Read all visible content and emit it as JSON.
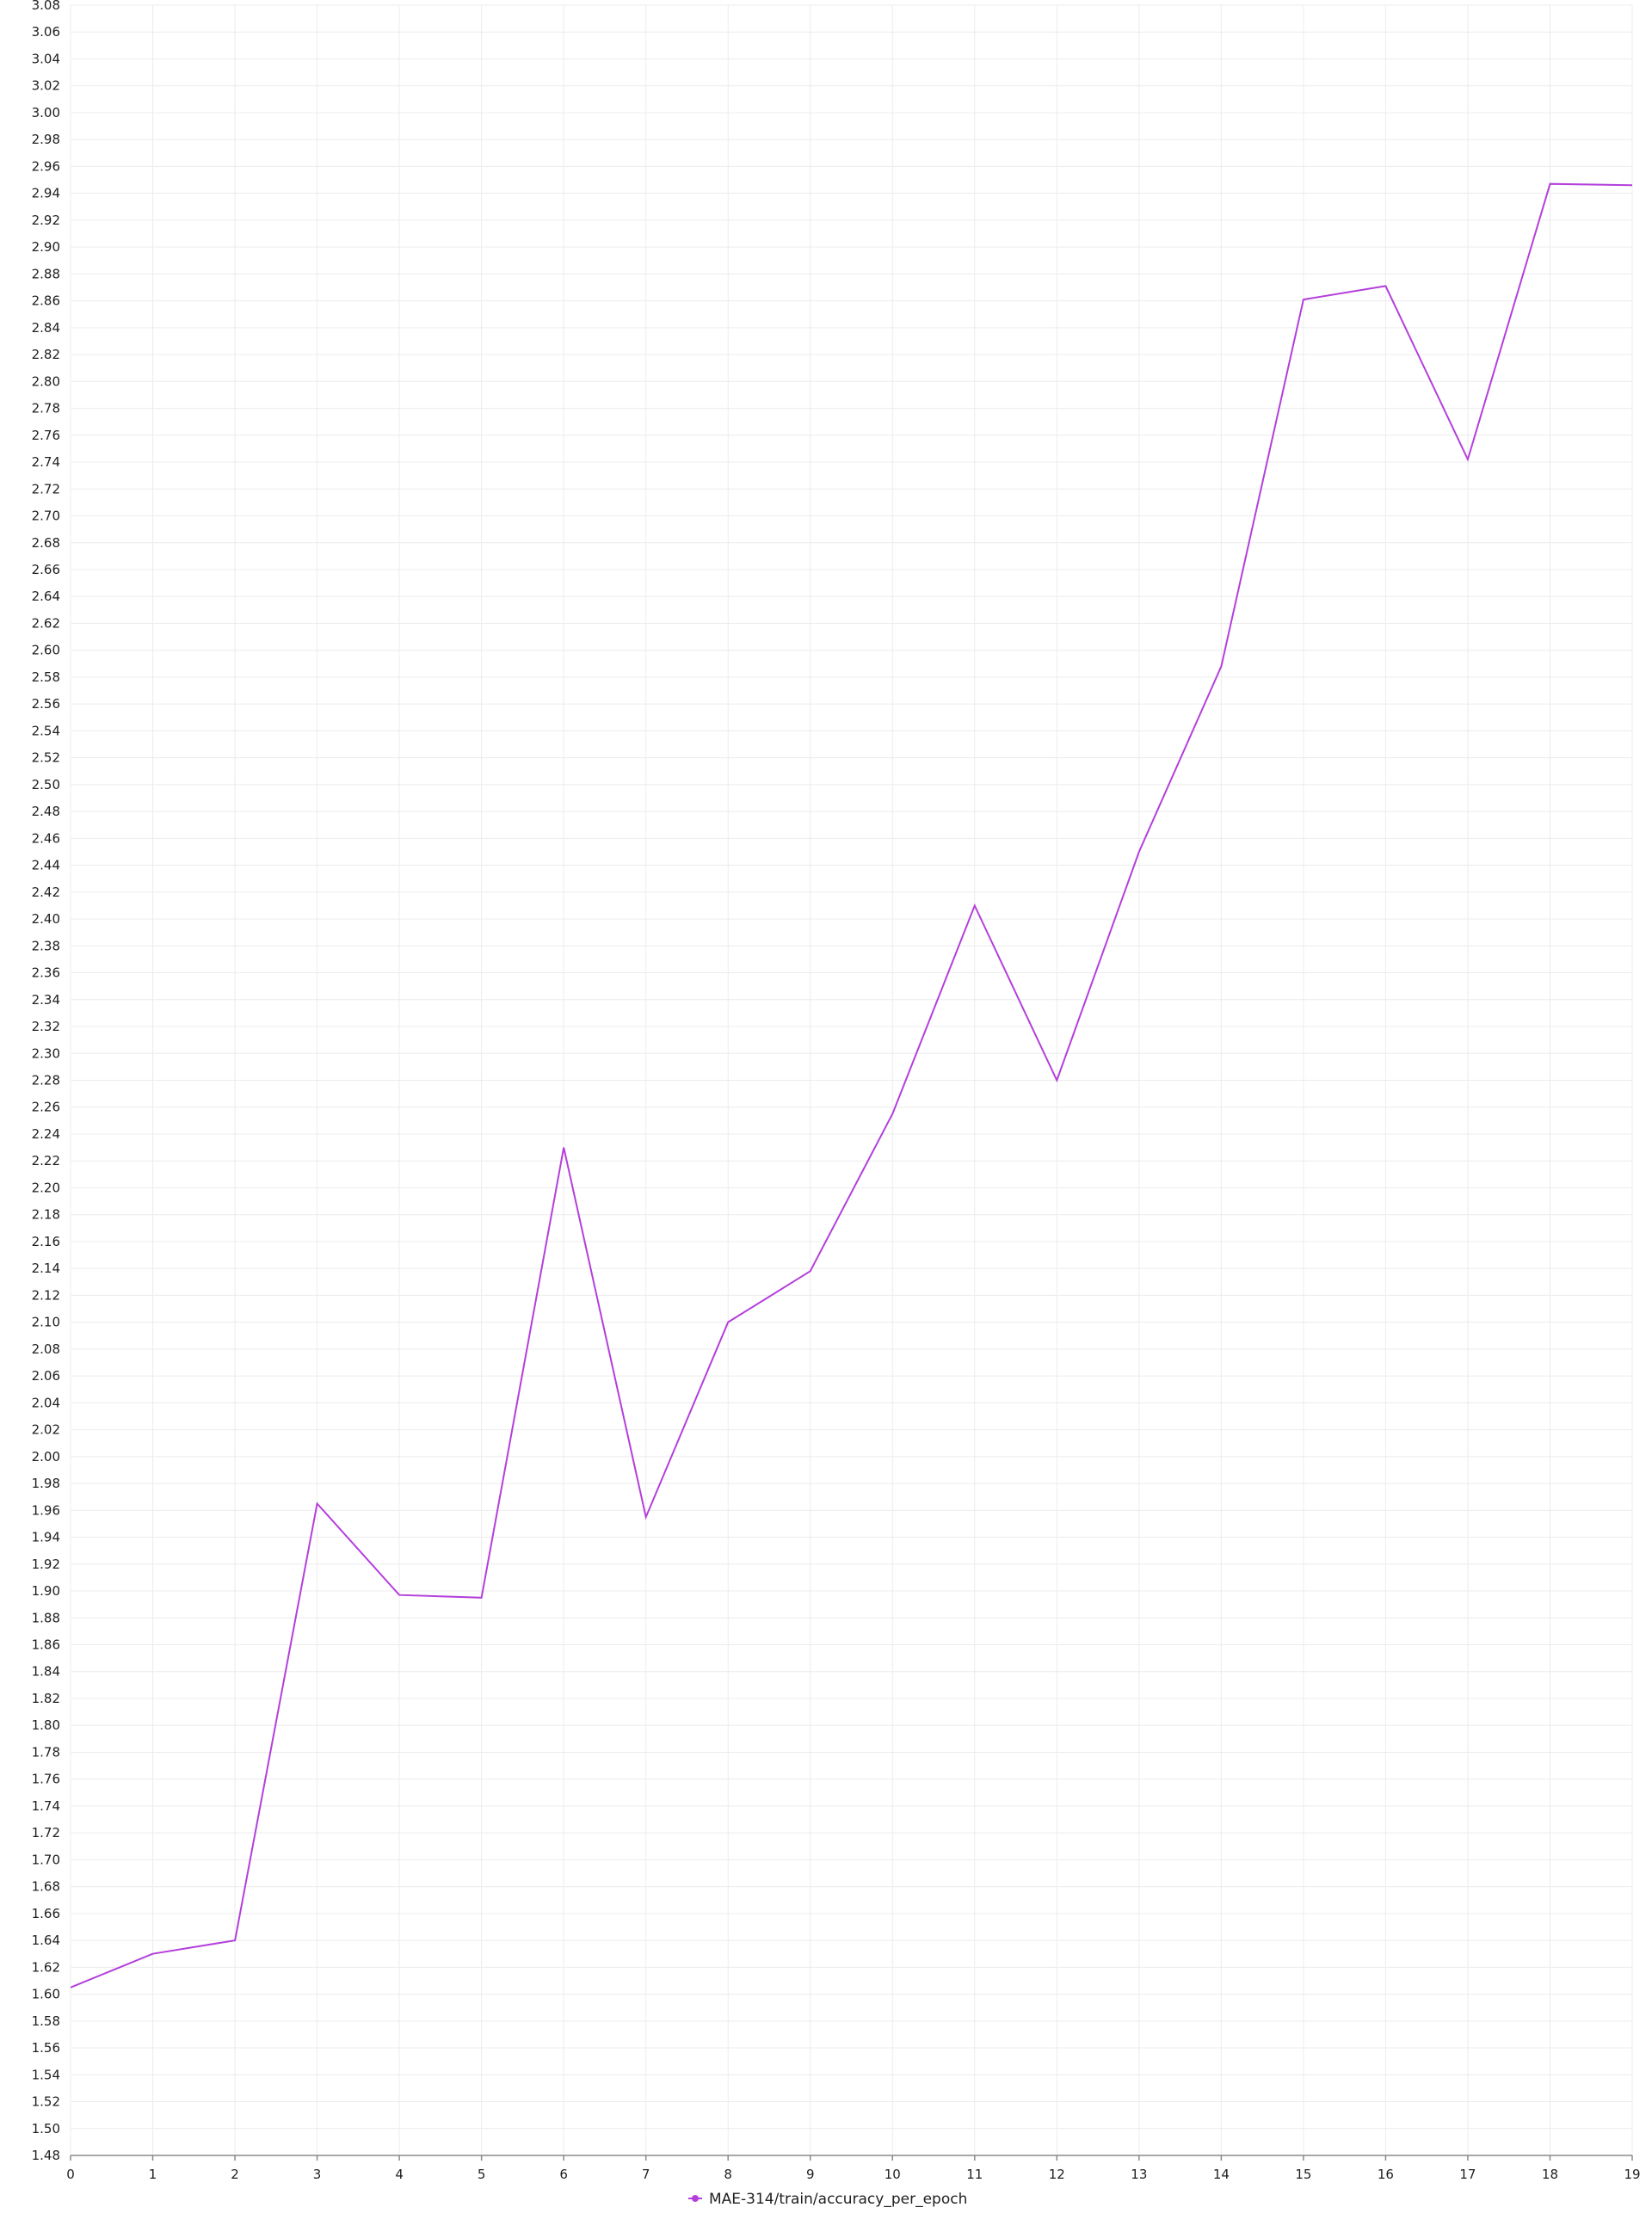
{
  "chart_data": {
    "type": "line",
    "title": "",
    "xlabel": "",
    "ylabel": "",
    "xlim": [
      0,
      19
    ],
    "ylim": [
      1.48,
      3.08
    ],
    "y_tick_step": 0.02,
    "x_ticks": [
      0,
      1,
      2,
      3,
      4,
      5,
      6,
      7,
      8,
      9,
      10,
      11,
      12,
      13,
      14,
      15,
      16,
      17,
      18,
      19
    ],
    "grid": true,
    "legend_position": "bottom-center",
    "series": [
      {
        "name": "MAE-314/train/accuracy_per_epoch",
        "color": "#b43fdb",
        "x": [
          0,
          1,
          2,
          3,
          4,
          5,
          6,
          7,
          8,
          9,
          10,
          11,
          12,
          13,
          14,
          15,
          16,
          17,
          18,
          19
        ],
        "y": [
          1.605,
          1.63,
          1.64,
          1.965,
          1.897,
          1.895,
          2.23,
          1.955,
          2.1,
          2.138,
          2.255,
          2.41,
          2.28,
          2.45,
          2.588,
          2.861,
          2.871,
          2.742,
          2.947,
          2.946
        ]
      }
    ]
  }
}
